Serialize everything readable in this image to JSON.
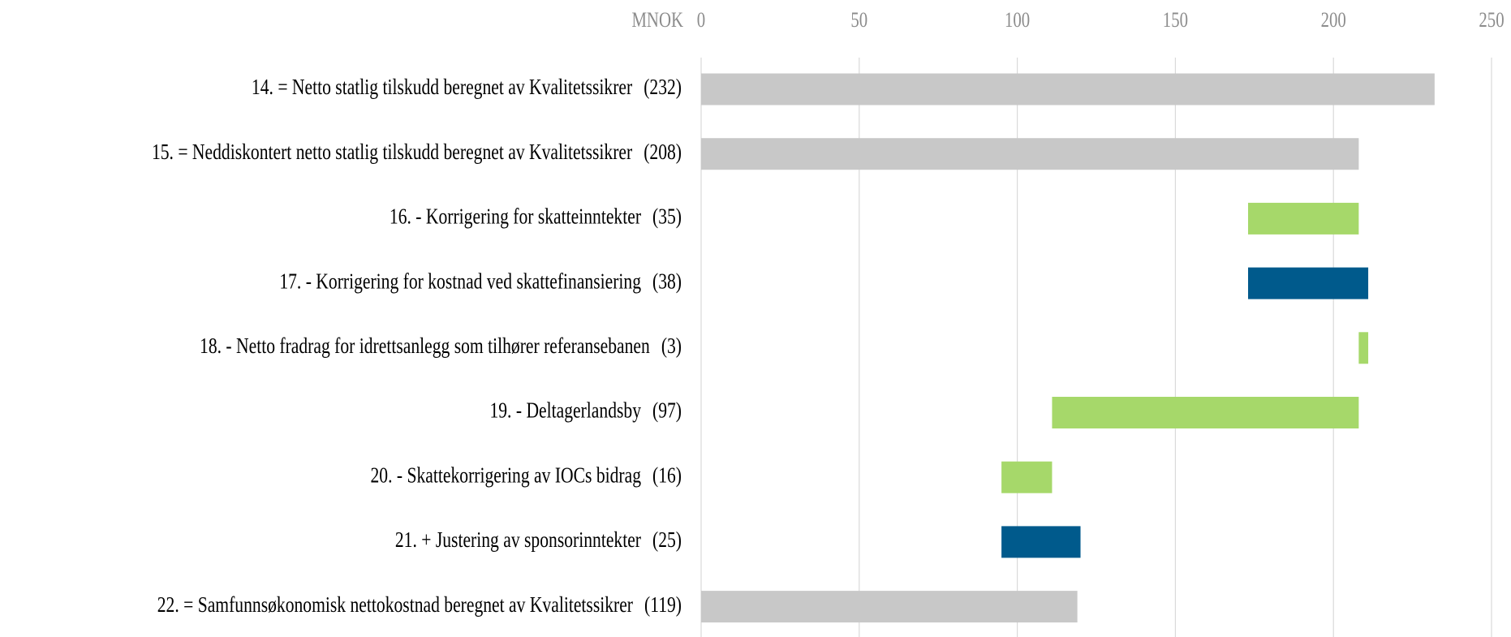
{
  "chart_data": {
    "type": "waterfall",
    "orientation": "horizontal",
    "x_label": "MNOK",
    "categories": [
      "14. = Netto statlig tilskudd beregnet av Kvalitetssikrer",
      "15. = Neddiskontert netto statlig tilskudd beregnet av Kvalitetssikrer",
      "16. - Korrigering for skatteinntekter",
      "17. -  Korrigering for kostnad ved skattefinansiering",
      "18. -  Netto fradrag for idrettsanlegg som tilhører referansebanen",
      "19. -  Deltagerlandsby",
      "20. -  Skattekorrigering av IOCs bidrag",
      "21. + Justering av sponsorinntekter",
      "22. = Samfunnsøkonomisk nettokostnad beregnet av Kvalitetssikrer"
    ],
    "values": [
      232,
      208,
      35,
      38,
      3,
      97,
      16,
      25,
      119
    ],
    "value_labels": [
      "(232)",
      "(208)",
      "(35)",
      "(38)",
      "(3)",
      "(97)",
      "(16)",
      "(25)",
      "(119)"
    ],
    "kinds": [
      "total",
      "total",
      "decrease",
      "increase",
      "decrease",
      "decrease",
      "decrease",
      "increase",
      "total"
    ],
    "colors": {
      "total": "#c8c8c8",
      "decrease": "#a6d86a",
      "increase": "#005a8c"
    },
    "xlim": [
      0,
      250
    ],
    "xticks": [
      0,
      50,
      100,
      150,
      200,
      250
    ],
    "grid": true
  }
}
